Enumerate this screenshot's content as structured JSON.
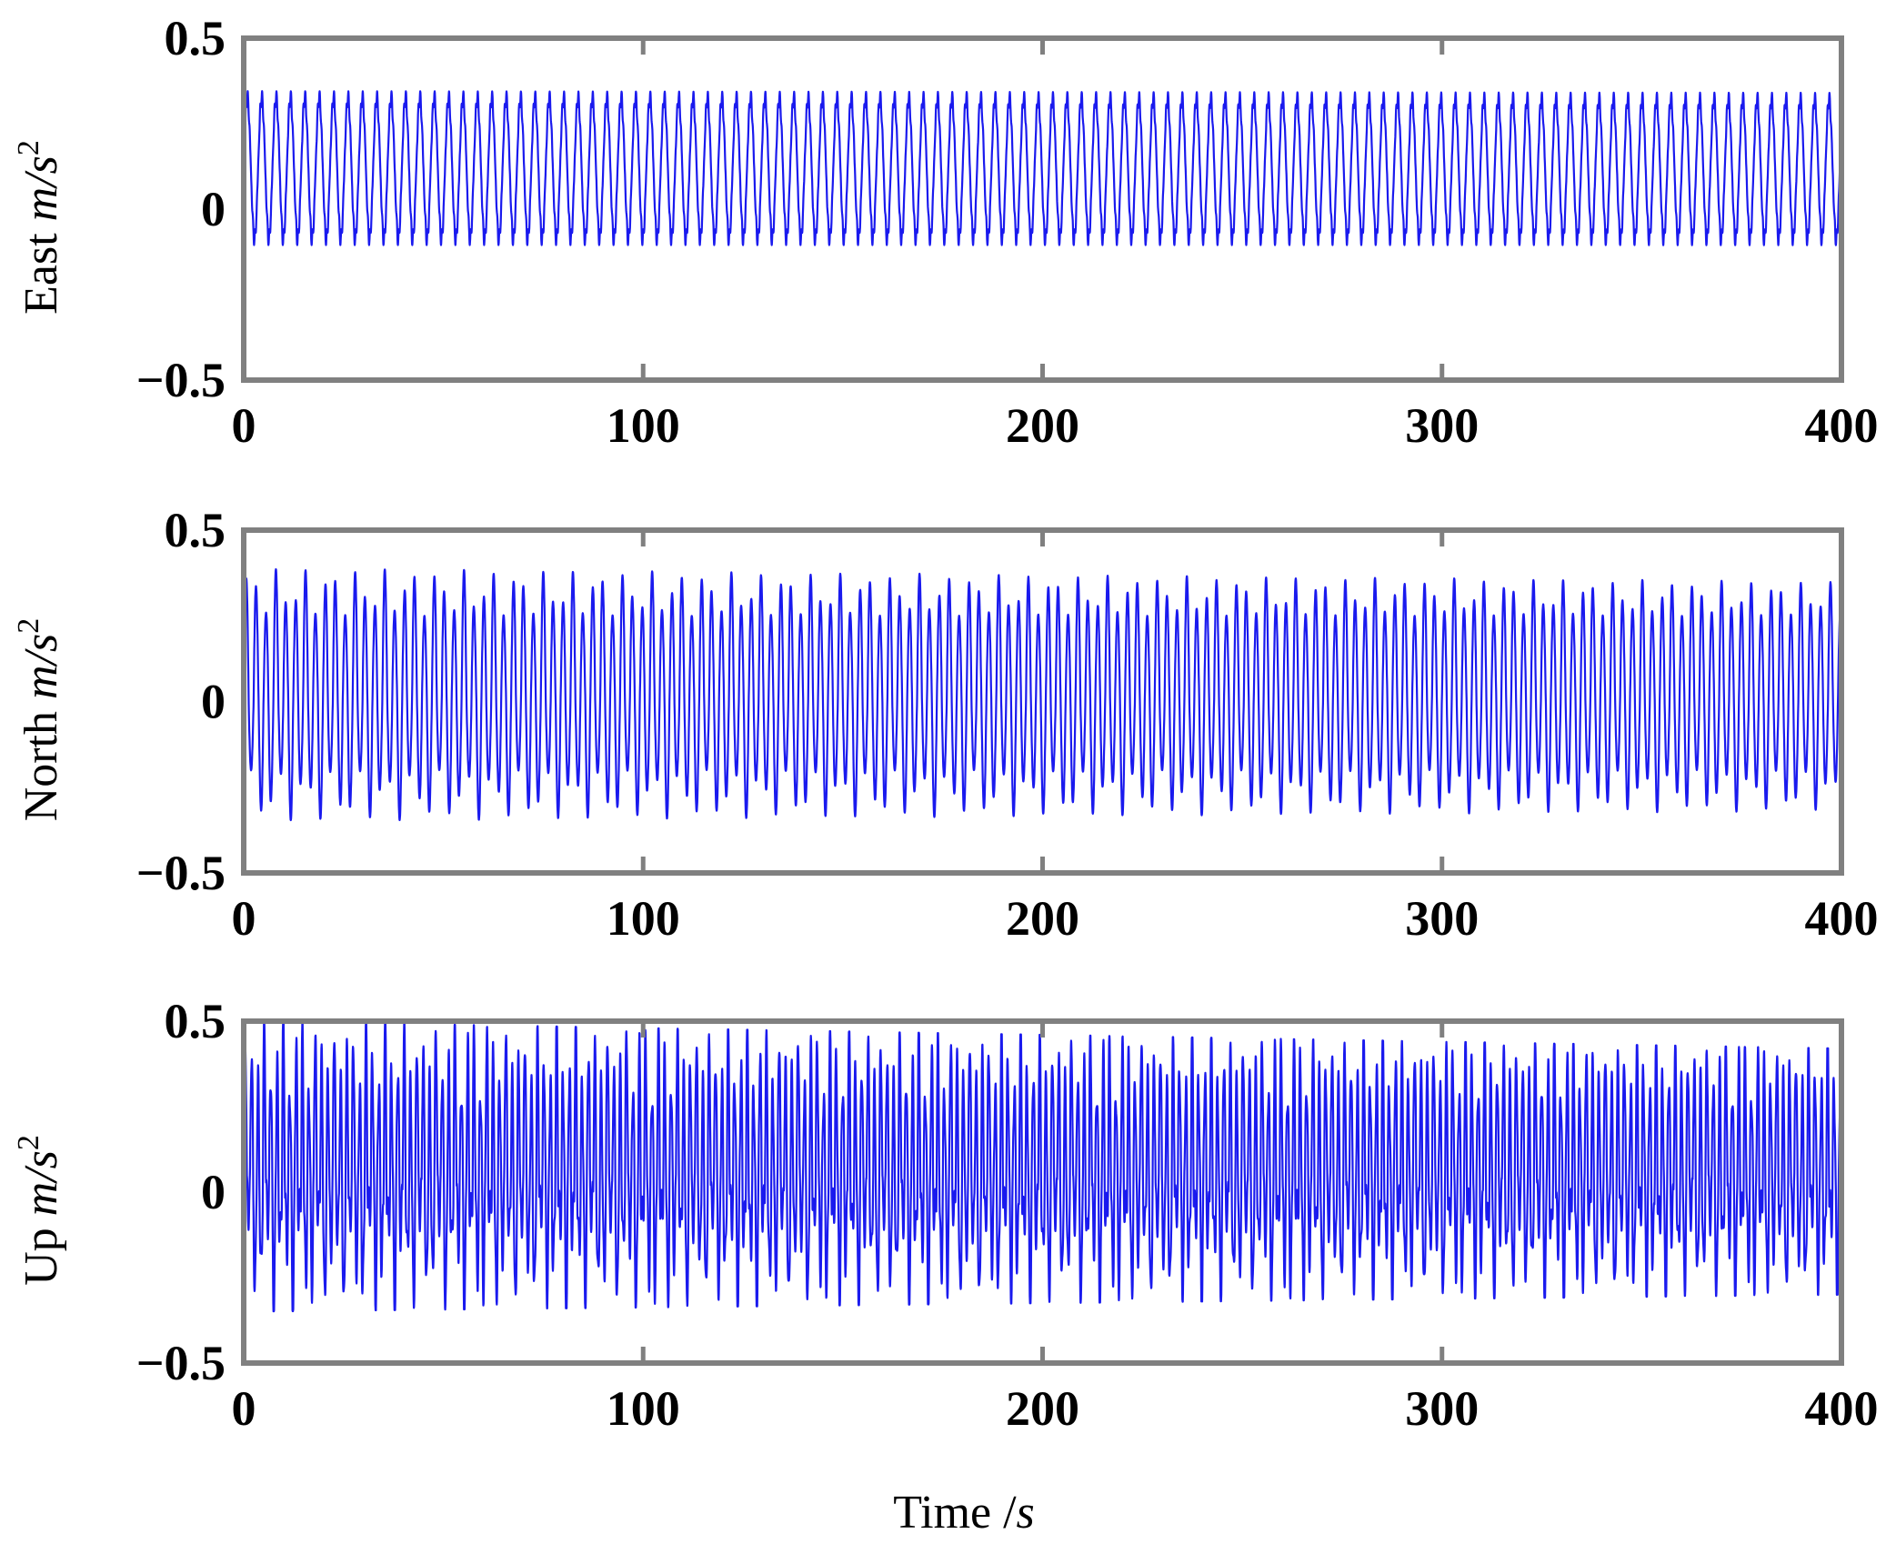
{
  "figure": {
    "xlabel_prefix": "Time /",
    "xlabel_unit": "s"
  },
  "chart_data": [
    {
      "type": "line",
      "ylabel_prefix": "East ",
      "ylabel_unit": "m/s",
      "ylabel_exp": "2",
      "xlim": [
        0,
        400
      ],
      "ylim": [
        -0.5,
        0.5
      ],
      "xticks": [
        "0",
        "100",
        "200",
        "300",
        "400"
      ],
      "yticks": [
        "0.5",
        "0",
        "−0.5"
      ],
      "ytick_values": [
        0.5,
        0,
        -0.5
      ],
      "grid": false,
      "color": "#1a1aee",
      "series": [
        {
          "period": 3.6,
          "max_start": 0.35,
          "max_end": 0.345,
          "min_start": -0.11,
          "min_end": -0.11,
          "mid": 0.12,
          "x": [
            0,
            400
          ]
        }
      ]
    },
    {
      "type": "line",
      "ylabel_prefix": "North ",
      "ylabel_unit": "m/s",
      "ylabel_exp": "2",
      "xlim": [
        0,
        400
      ],
      "ylim": [
        -0.5,
        0.5
      ],
      "xticks": [
        "0",
        "100",
        "200",
        "300",
        "400"
      ],
      "yticks": [
        "0.5",
        "0",
        "−0.5"
      ],
      "ytick_values": [
        0.5,
        0,
        -0.5
      ],
      "grid": false,
      "color": "#1a1aee",
      "series": [
        {
          "period": 6.7,
          "max_start": 0.39,
          "max_end": 0.35,
          "min_start": -0.35,
          "min_end": -0.32,
          "inner_max": 0.25,
          "inner_min": -0.2,
          "x": [
            0,
            400
          ]
        }
      ]
    },
    {
      "type": "line",
      "ylabel_prefix": "Up ",
      "ylabel_unit": "m/s",
      "ylabel_exp": "2",
      "xlim": [
        0,
        400
      ],
      "ylim": [
        -0.5,
        0.5
      ],
      "xticks": [
        "0",
        "100",
        "200",
        "300",
        "400"
      ],
      "yticks": [
        "0.5",
        "0",
        "−0.5"
      ],
      "ytick_values": [
        0.5,
        0,
        -0.5
      ],
      "grid": false,
      "color": "#1a1aee",
      "series": [
        {
          "period": 4.3,
          "max_start": 0.5,
          "max_end": 0.42,
          "min_start": -0.35,
          "min_end": -0.3,
          "inner_max": 0.3,
          "inner_min": -0.05,
          "x": [
            0,
            400
          ]
        }
      ]
    }
  ]
}
